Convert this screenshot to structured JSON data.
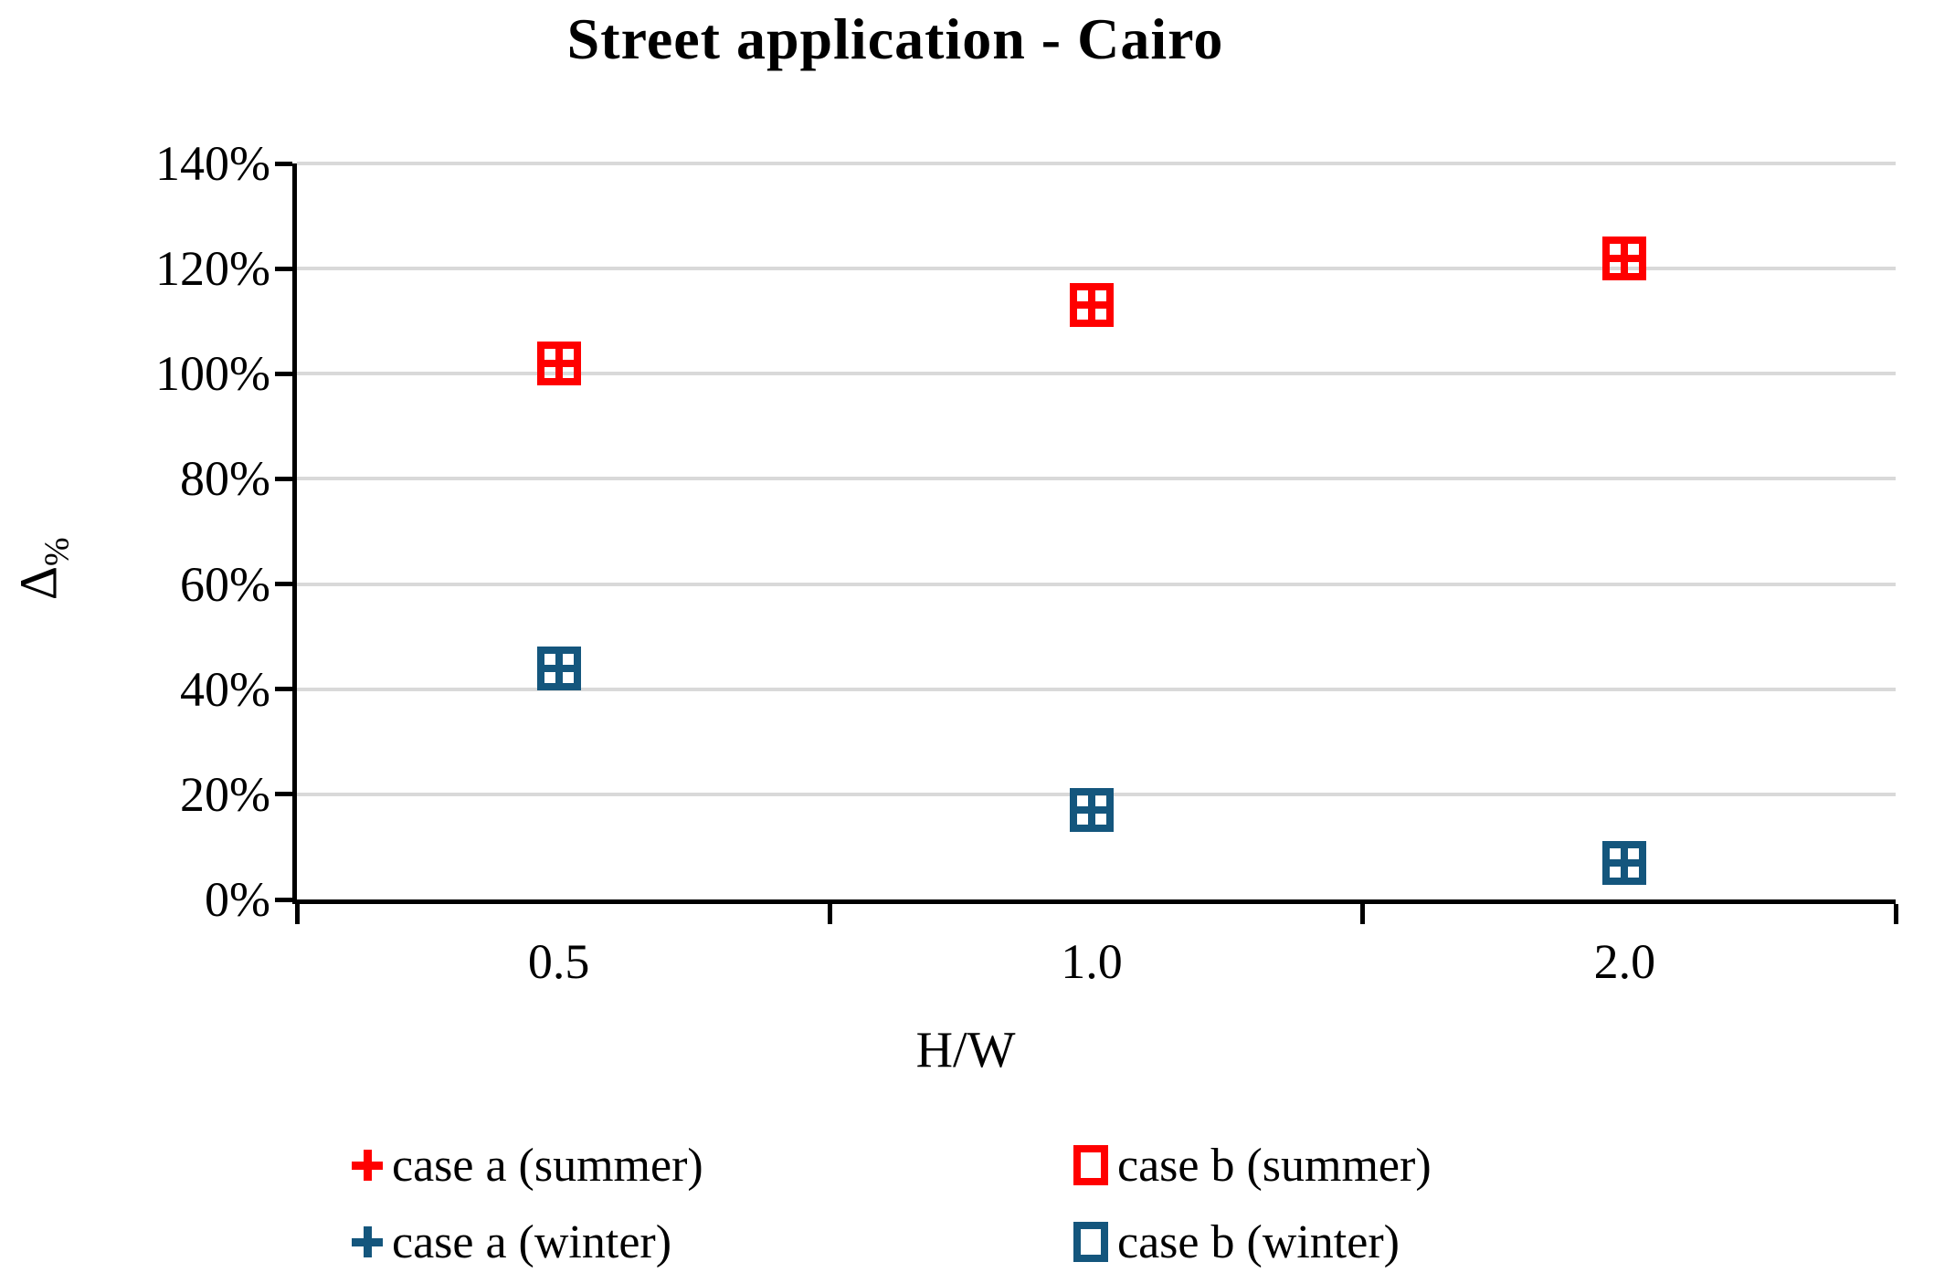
{
  "title": "Street application - Cairo",
  "y_axis": {
    "label_delta": "Δ",
    "label_sub": "%"
  },
  "x_axis": {
    "label": "H/W"
  },
  "legend": {
    "items": [
      {
        "label": "case a (summer)",
        "marker": "plus",
        "color": "#FF0000"
      },
      {
        "label": "case b (summer)",
        "marker": "square",
        "color": "#FF0000"
      },
      {
        "label": "case a (winter)",
        "marker": "plus",
        "color": "#14567D"
      },
      {
        "label": "case b (winter)",
        "marker": "square",
        "color": "#14567D"
      }
    ]
  },
  "chart_data": {
    "type": "scatter",
    "title": "Street application - Cairo",
    "xlabel": "H/W",
    "ylabel": "Δ%",
    "categories": [
      "0.5",
      "1.0",
      "2.0"
    ],
    "ylim": [
      0,
      140
    ],
    "ytick_step": 20,
    "ytick_labels": [
      "0%",
      "20%",
      "40%",
      "60%",
      "80%",
      "100%",
      "120%",
      "140%"
    ],
    "grid": true,
    "legend_position": "bottom",
    "series": [
      {
        "name": "case a (summer)",
        "marker": "plus",
        "color": "#FF0000",
        "values": [
          102,
          113,
          122
        ]
      },
      {
        "name": "case b (summer)",
        "marker": "square",
        "color": "#FF0000",
        "values": [
          102,
          113,
          122
        ]
      },
      {
        "name": "case a (winter)",
        "marker": "plus",
        "color": "#14567D",
        "values": [
          44,
          17,
          7
        ]
      },
      {
        "name": "case b (winter)",
        "marker": "square",
        "color": "#14567D",
        "values": [
          44,
          17,
          7
        ]
      }
    ],
    "note": "case a and case b markers coincide at each H/W value (plus drawn inside square)"
  },
  "colors": {
    "red": "#FF0000",
    "blue": "#14567D",
    "gridline": "#D9D9D9",
    "axis": "#000000",
    "background": "#FFFFFF"
  }
}
